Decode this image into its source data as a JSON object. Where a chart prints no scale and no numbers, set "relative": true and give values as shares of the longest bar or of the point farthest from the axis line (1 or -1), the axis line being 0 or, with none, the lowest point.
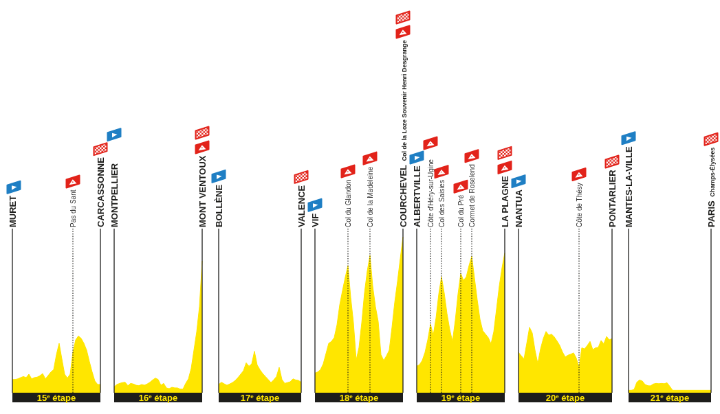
{
  "chart_data": {
    "type": "area",
    "relative": true,
    "tick_labels": "x",
    "grid": "x",
    "color": "#ffe600",
    "categories": [
      "MURET",
      null,
      null,
      null,
      null,
      null,
      null,
      null,
      null,
      null,
      null,
      null,
      null,
      null,
      null,
      null,
      null,
      null,
      null,
      null,
      null,
      null,
      "Pas du Sant",
      null,
      null,
      null,
      null,
      null,
      null,
      null,
      null,
      null,
      "CARCASSONNE",
      null,
      null,
      null,
      null,
      "MONTPELLIER",
      null,
      null,
      null,
      null,
      null,
      null,
      null,
      null,
      null,
      null,
      null,
      null,
      null,
      null,
      null,
      null,
      null,
      null,
      null,
      null,
      null,
      null,
      null,
      null,
      null,
      null,
      null,
      null,
      null,
      null,
      null,
      "MONT VENTOUX",
      null,
      null,
      null,
      null,
      null,
      "BOLLÈNE",
      null,
      null,
      null,
      null,
      null,
      null,
      null,
      null,
      null,
      null,
      null,
      null,
      null,
      null,
      null,
      null,
      null,
      null,
      null,
      null,
      null,
      null,
      null,
      null,
      null,
      null,
      null,
      null,
      null,
      "VALENCE",
      null,
      null,
      null,
      null,
      "VIF",
      null,
      null,
      null,
      null,
      null,
      null,
      null,
      null,
      null,
      null,
      null,
      "Col du Glandon",
      null,
      null,
      null,
      null,
      null,
      null,
      null,
      "Col de la Madeleine",
      null,
      null,
      null,
      null,
      null,
      null,
      null,
      null,
      null,
      null,
      null,
      "COURCHEVEL Col de la Loze Souvenir Henri Desgrange",
      null,
      null,
      null,
      null,
      "ALBERTVILLE",
      null,
      null,
      null,
      null,
      "Côte d'Héry-sur-Ugine",
      null,
      null,
      null,
      "Col des Saisies",
      null,
      null,
      null,
      null,
      null,
      null,
      "Col du Pré",
      null,
      null,
      null,
      "Cormet de Roselend",
      null,
      null,
      null,
      null,
      null,
      null,
      null,
      null,
      null,
      null,
      null,
      "LA PLAGNE",
      null,
      null,
      null,
      null,
      "NANTUA",
      null,
      null,
      null,
      null,
      null,
      null,
      null,
      null,
      null,
      null,
      null,
      null,
      null,
      null,
      null,
      null,
      null,
      null,
      null,
      null,
      null,
      "Côte de Thésy",
      null,
      null,
      null,
      null,
      null,
      null,
      null,
      null,
      null,
      null,
      null,
      "PONTARLIER",
      null,
      null,
      null,
      null,
      null,
      "MANTES-LA-VILLE",
      null,
      null,
      null,
      null,
      null,
      null,
      null,
      null,
      null,
      null,
      null,
      null,
      null,
      null,
      null,
      null,
      null,
      null,
      null,
      null,
      null,
      null,
      null,
      null,
      null,
      null,
      null,
      null,
      null,
      "PARIS Champs-Élysées"
    ],
    "values": [
      0.085,
      0.085,
      0.089,
      0.097,
      0.104,
      0.097,
      0.119,
      0.089,
      0.097,
      0.1,
      0.109,
      0.123,
      0.089,
      0.11,
      0.133,
      0.148,
      0.244,
      0.317,
      0.216,
      0.119,
      0.094,
      0.119,
      0.259,
      0.339,
      0.364,
      0.349,
      0.317,
      0.273,
      0.2,
      0.133,
      0.075,
      0.053,
      0.053,
      null,
      null,
      null,
      null,
      0.038,
      0.053,
      0.06,
      0.065,
      0.067,
      0.045,
      0.06,
      0.056,
      0.048,
      0.045,
      0.053,
      0.048,
      0.056,
      0.067,
      0.082,
      0.094,
      0.085,
      0.048,
      0.06,
      0.031,
      0.026,
      0.035,
      0.031,
      0.031,
      0.023,
      0.023,
      0.06,
      0.089,
      0.156,
      0.273,
      0.391,
      0.552,
      0.846,
      null,
      null,
      null,
      null,
      null,
      0.053,
      0.067,
      0.057,
      0.048,
      0.056,
      0.065,
      0.078,
      0.097,
      0.119,
      0.141,
      0.192,
      0.17,
      0.185,
      0.266,
      0.178,
      0.148,
      0.123,
      0.104,
      0.085,
      0.065,
      0.082,
      0.104,
      0.163,
      0.085,
      0.06,
      0.065,
      0.07,
      0.089,
      0.082,
      0.079,
      0.067,
      null,
      null,
      null,
      null,
      0.126,
      0.133,
      0.148,
      0.185,
      0.251,
      0.317,
      0.329,
      0.354,
      0.435,
      0.564,
      0.655,
      0.74,
      0.816,
      0.611,
      0.449,
      0.21,
      0.29,
      0.449,
      0.64,
      0.78,
      0.882,
      0.684,
      0.552,
      0.457,
      0.244,
      0.207,
      0.237,
      0.273,
      0.42,
      0.581,
      0.714,
      0.86,
      1,
      null,
      null,
      null,
      null,
      0.17,
      0.18,
      0.207,
      0.259,
      0.339,
      0.44,
      0.369,
      0.479,
      0.633,
      0.743,
      0.64,
      0.508,
      0.405,
      0.329,
      0.464,
      0.633,
      0.765,
      0.721,
      0.743,
      0.816,
      0.875,
      0.736,
      0.596,
      0.471,
      0.398,
      0.376,
      0.354,
      0.314,
      0.391,
      0.537,
      0.684,
      0.802,
      0.897,
      null,
      null,
      null,
      null,
      0.259,
      0.237,
      0.217,
      0.317,
      0.42,
      0.383,
      0.273,
      0.188,
      0.281,
      0.347,
      0.393,
      0.369,
      0.376,
      0.358,
      0.332,
      0.303,
      0.261,
      0.229,
      0.241,
      0.247,
      0.256,
      0.222,
      0.163,
      0.288,
      0.281,
      0.303,
      0.329,
      0.276,
      0.288,
      0.291,
      0.335,
      0.314,
      0.361,
      0.339,
      0.347,
      null,
      null,
      null,
      null,
      null,
      0.016,
      0.016,
      0.02,
      0.067,
      0.082,
      0.075,
      0.053,
      0.045,
      0.044,
      0.056,
      0.06,
      0.058,
      0.06,
      0.058,
      0.064,
      0.041,
      0.016,
      0.016,
      0.016,
      0.016,
      0.016,
      0.016,
      0.016,
      0.016,
      0.016,
      0.016,
      0.016,
      0.016,
      0.016,
      0.016,
      0.016
    ],
    "annotations": [
      "15$^{e}$ étape",
      "16$^{e}$ étape",
      "17$^{e}$ étape",
      "18$^{e}$ étape",
      "19$^{e}$ étape",
      "20$^{e}$ étape",
      "21$^{e}$ étape"
    ]
  }
}
